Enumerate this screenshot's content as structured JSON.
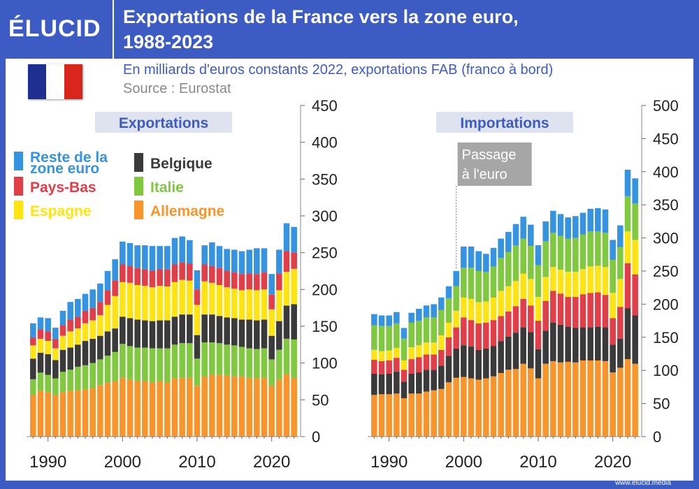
{
  "header": {
    "logo": "ÉLUCID",
    "title_line1": "Exportations de la France vers la zone euro,",
    "title_line2": "1988-2023"
  },
  "subtitle": "En milliards d'euros constants 2022, exportations FAB (franco à bord)",
  "source": "Source : Eurostat",
  "footer_url": "www.elucid.media",
  "colors": {
    "brand": "#3c5cc4",
    "flag": [
      "#1f2f8f",
      "#ffffff",
      "#d9261c"
    ]
  },
  "chart_data": [
    {
      "type": "bar",
      "stacked": true,
      "title": "Exportations",
      "xlabel": "",
      "ylabel": "",
      "ylim": [
        0,
        450
      ],
      "yticks": [
        0,
        50,
        100,
        150,
        200,
        250,
        300,
        350,
        400,
        450
      ],
      "xticks": [
        1990,
        2000,
        2010,
        2020
      ],
      "x": [
        1988,
        1989,
        1990,
        1991,
        1992,
        1993,
        1994,
        1995,
        1996,
        1997,
        1998,
        1999,
        2000,
        2001,
        2002,
        2003,
        2004,
        2005,
        2006,
        2007,
        2008,
        2009,
        2010,
        2011,
        2012,
        2013,
        2014,
        2015,
        2016,
        2017,
        2018,
        2019,
        2020,
        2021,
        2022,
        2023
      ],
      "series": [
        {
          "name": "Allemagne",
          "color": "#f7952c",
          "values": [
            56,
            62,
            60,
            57,
            60,
            62,
            63,
            64,
            66,
            70,
            73,
            75,
            80,
            78,
            76,
            75,
            74,
            75,
            74,
            79,
            80,
            80,
            69,
            82,
            84,
            84,
            83,
            82,
            82,
            80,
            79,
            80,
            69,
            78,
            85,
            80
          ]
        },
        {
          "name": "Italie",
          "color": "#7fc840",
          "values": [
            22,
            25,
            24,
            22,
            28,
            29,
            32,
            33,
            34,
            35,
            37,
            40,
            46,
            45,
            45,
            46,
            46,
            45,
            46,
            46,
            47,
            47,
            37,
            46,
            44,
            43,
            42,
            42,
            40,
            40,
            40,
            40,
            36,
            40,
            48,
            52
          ]
        },
        {
          "name": "Belgique",
          "color": "#3a3a3a",
          "values": [
            28,
            27,
            28,
            25,
            30,
            30,
            30,
            33,
            33,
            32,
            33,
            32,
            37,
            38,
            38,
            37,
            37,
            38,
            38,
            38,
            39,
            39,
            32,
            38,
            38,
            37,
            37,
            37,
            37,
            39,
            39,
            39,
            32,
            39,
            45,
            48
          ]
        },
        {
          "name": "Espagne",
          "color": "#ffe415",
          "values": [
            18,
            19,
            18,
            16,
            19,
            22,
            22,
            24,
            25,
            28,
            36,
            44,
            47,
            48,
            47,
            47,
            46,
            47,
            46,
            47,
            47,
            46,
            41,
            45,
            43,
            42,
            41,
            40,
            40,
            41,
            41,
            41,
            36,
            42,
            46,
            48
          ]
        },
        {
          "name": "Pays-Bas",
          "color": "#e03f4a",
          "values": [
            11,
            13,
            13,
            13,
            14,
            16,
            16,
            17,
            17,
            18,
            20,
            21,
            24,
            23,
            23,
            22,
            22,
            23,
            23,
            24,
            24,
            23,
            21,
            23,
            23,
            23,
            22,
            22,
            22,
            22,
            22,
            23,
            20,
            23,
            28,
            22
          ]
        },
        {
          "name": "Reste de la zone euro",
          "color": "#3593df",
          "values": [
            19,
            16,
            18,
            15,
            20,
            24,
            24,
            23,
            25,
            25,
            26,
            29,
            31,
            31,
            31,
            33,
            34,
            31,
            32,
            36,
            35,
            32,
            26,
            26,
            32,
            30,
            30,
            31,
            31,
            32,
            35,
            33,
            28,
            32,
            38,
            35
          ]
        }
      ]
    },
    {
      "type": "bar",
      "stacked": true,
      "title": "Importations",
      "xlabel": "",
      "ylabel": "",
      "ylim": [
        0,
        500
      ],
      "yticks": [
        0,
        50,
        100,
        150,
        200,
        250,
        300,
        350,
        400,
        450,
        500
      ],
      "xticks": [
        1990,
        2000,
        2010,
        2020
      ],
      "x": [
        1988,
        1989,
        1990,
        1991,
        1992,
        1993,
        1994,
        1995,
        1996,
        1997,
        1998,
        1999,
        2000,
        2001,
        2002,
        2003,
        2004,
        2005,
        2006,
        2007,
        2008,
        2009,
        2010,
        2011,
        2012,
        2013,
        2014,
        2015,
        2016,
        2017,
        2018,
        2019,
        2020,
        2021,
        2022,
        2023
      ],
      "annotation": {
        "text_line1": "Passage",
        "text_line2": "à l'euro",
        "year": 1999
      },
      "series": [
        {
          "name": "Allemagne",
          "color": "#f7952c",
          "values": [
            63,
            64,
            64,
            65,
            58,
            65,
            65,
            68,
            70,
            72,
            82,
            89,
            90,
            88,
            86,
            88,
            91,
            96,
            101,
            102,
            110,
            103,
            88,
            110,
            114,
            112,
            113,
            112,
            115,
            115,
            115,
            114,
            97,
            104,
            117,
            110
          ]
        },
        {
          "name": "Belgique",
          "color": "#3a3a3a",
          "values": [
            32,
            30,
            31,
            33,
            25,
            30,
            32,
            33,
            31,
            35,
            40,
            44,
            48,
            48,
            45,
            45,
            46,
            48,
            50,
            55,
            55,
            55,
            44,
            50,
            58,
            57,
            53,
            52,
            50,
            50,
            51,
            51,
            42,
            44,
            77,
            73
          ]
        },
        {
          "name": "Pays-Bas",
          "color": "#e03f4a",
          "values": [
            21,
            20,
            20,
            21,
            18,
            22,
            23,
            23,
            23,
            24,
            28,
            32,
            42,
            40,
            40,
            39,
            39,
            38,
            38,
            40,
            43,
            40,
            43,
            45,
            48,
            47,
            45,
            47,
            50,
            52,
            52,
            49,
            40,
            48,
            68,
            62
          ]
        },
        {
          "name": "Espagne",
          "color": "#ffe415",
          "values": [
            15,
            15,
            15,
            15,
            14,
            18,
            18,
            18,
            18,
            22,
            22,
            25,
            30,
            32,
            32,
            32,
            34,
            38,
            38,
            38,
            38,
            40,
            36,
            36,
            36,
            36,
            38,
            38,
            38,
            40,
            40,
            42,
            38,
            42,
            48,
            52
          ]
        },
        {
          "name": "Italie",
          "color": "#7fc840",
          "values": [
            37,
            38,
            37,
            37,
            33,
            37,
            37,
            38,
            38,
            38,
            37,
            37,
            45,
            47,
            47,
            45,
            47,
            50,
            52,
            54,
            53,
            50,
            48,
            54,
            52,
            51,
            50,
            51,
            52,
            53,
            52,
            52,
            50,
            48,
            53,
            55
          ]
        },
        {
          "name": "Reste de la zone euro",
          "color": "#3593df",
          "values": [
            17,
            16,
            16,
            17,
            16,
            15,
            18,
            18,
            20,
            19,
            18,
            23,
            32,
            32,
            30,
            27,
            28,
            29,
            30,
            32,
            33,
            32,
            30,
            30,
            33,
            33,
            32,
            33,
            33,
            34,
            35,
            35,
            30,
            33,
            40,
            38
          ]
        }
      ]
    }
  ],
  "legend": [
    {
      "name": "Reste de la zone euro",
      "line1": "Reste de la",
      "line2": "zone euro",
      "color": "#3593df"
    },
    {
      "name": "Belgique",
      "line1": "Belgique",
      "line2": "",
      "color": "#3a3a3a"
    },
    {
      "name": "Pays-Bas",
      "line1": "Pays-Bas",
      "line2": "",
      "color": "#e03f4a"
    },
    {
      "name": "Italie",
      "line1": "Italie",
      "line2": "",
      "color": "#7fc840"
    },
    {
      "name": "Espagne",
      "line1": "Espagne",
      "line2": "",
      "color": "#ffe415"
    },
    {
      "name": "Allemagne",
      "line1": "Allemagne",
      "line2": "",
      "color": "#f7952c"
    }
  ]
}
